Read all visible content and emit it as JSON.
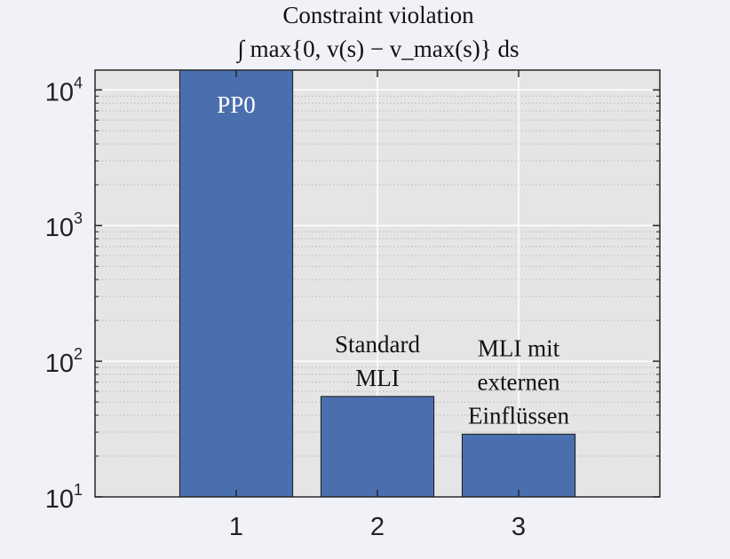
{
  "chart_data": {
    "type": "bar",
    "title": "Constraint violation",
    "subtitle": "∫ max{0, v(s) − v_max(s)} ds",
    "categories": [
      "1",
      "2",
      "3"
    ],
    "values": [
      14000,
      55,
      29
    ],
    "bar_labels": [
      [
        "PP0"
      ],
      [
        "Standard",
        "MLI"
      ],
      [
        "MLI mit",
        "externen",
        "Einflüssen"
      ]
    ],
    "xlabel": "",
    "ylabel": "",
    "yscale": "log",
    "ylim": [
      10,
      14000
    ],
    "yticks": [
      10,
      100,
      1000,
      10000
    ],
    "ytick_labels": [
      {
        "base": "10",
        "exp": "1"
      },
      {
        "base": "10",
        "exp": "2"
      },
      {
        "base": "10",
        "exp": "3"
      },
      {
        "base": "10",
        "exp": "4"
      }
    ],
    "grid": true,
    "colors": {
      "bar": "#4a6fae",
      "plot_background": "#e5e5e5",
      "figure_background": "#f0f2f7",
      "grid_major": "#ffffff",
      "grid_minor": "#b8b8b8",
      "axis": "#262626"
    }
  }
}
